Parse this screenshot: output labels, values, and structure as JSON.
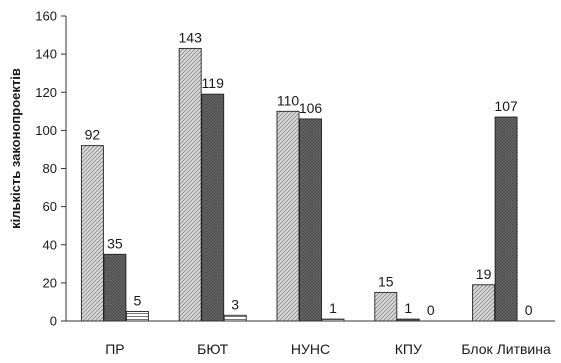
{
  "chart_data": {
    "type": "bar",
    "title": "",
    "xlabel": "",
    "ylabel": "кількість законопроектів",
    "ylim": [
      0,
      160
    ],
    "yticks": [
      0,
      20,
      40,
      60,
      80,
      100,
      120,
      140,
      160
    ],
    "grid": false,
    "legend": "none",
    "categories": [
      "ПР",
      "БЮТ",
      "НУНС",
      "КПУ",
      "Блок Литвина"
    ],
    "series": [
      {
        "values": [
          92,
          143,
          110,
          15,
          19
        ],
        "color": "#cfcfcf",
        "pattern": "light-diagonal-hatch"
      },
      {
        "values": [
          35,
          119,
          106,
          1,
          107
        ],
        "color": "#7a7a7a",
        "pattern": "dark-crosshatch"
      },
      {
        "values": [
          5,
          3,
          1,
          0,
          0
        ],
        "color": "#ffffff",
        "pattern": "horizontal-lines"
      }
    ]
  }
}
